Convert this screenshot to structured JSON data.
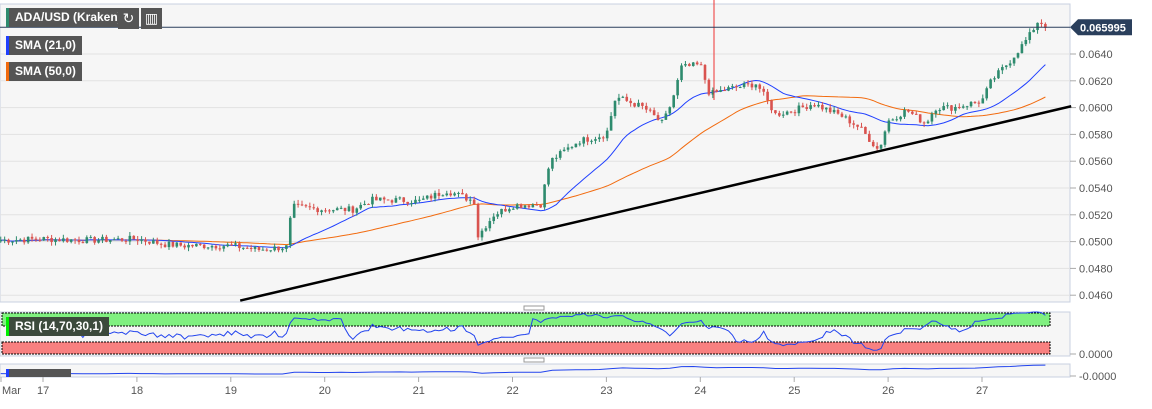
{
  "header": {
    "symbol": "ADA/USD (Kraken)",
    "refresh_icon": "refresh-icon",
    "bars_icon": "chart-bars-icon"
  },
  "indicators": {
    "sma21": "SMA (21,0)",
    "sma50": "SMA (50,0)",
    "rsi": "RSI (14,70,30,1)",
    "lower": ""
  },
  "colors": {
    "sma21": "#1f3fff",
    "sma50": "#f26b0f",
    "up": "#2e8b6e",
    "down": "#d9534f",
    "rsi_over": "#80f080",
    "rsi_under": "#f88080"
  },
  "chart_data": {
    "type": "candlestick",
    "title": "ADA/USD (Kraken)",
    "last_price": "0.065995",
    "y_ticks": [
      "0.0640",
      "0.0620",
      "0.0600",
      "0.0580",
      "0.0560",
      "0.0540",
      "0.0520",
      "0.0500",
      "0.0480",
      "0.0460"
    ],
    "ylim": [
      0.0456,
      0.066
    ],
    "x_ticks": [
      "Mar",
      "17",
      "18",
      "19",
      "20",
      "21",
      "22",
      "23",
      "24",
      "25",
      "26",
      "27"
    ],
    "rsi_axis": "0.0000",
    "lower_axis": "-0.0000",
    "price_path": [
      [
        16.55,
        0.0501
      ],
      [
        17,
        0.0502
      ],
      [
        17.5,
        0.0501
      ],
      [
        18,
        0.0502
      ],
      [
        18.3,
        0.0498
      ],
      [
        18.5,
        0.0497
      ],
      [
        19,
        0.0497
      ],
      [
        19.3,
        0.0494
      ],
      [
        19.6,
        0.0496
      ],
      [
        19.65,
        0.0526
      ],
      [
        20,
        0.0524
      ],
      [
        20.3,
        0.0524
      ],
      [
        20.5,
        0.0531
      ],
      [
        20.8,
        0.0531
      ],
      [
        21,
        0.053
      ],
      [
        21.3,
        0.0538
      ],
      [
        21.6,
        0.053
      ],
      [
        21.62,
        0.0503
      ],
      [
        21.8,
        0.052
      ],
      [
        22,
        0.0527
      ],
      [
        22.3,
        0.0528
      ],
      [
        22.4,
        0.056
      ],
      [
        22.7,
        0.0575
      ],
      [
        23,
        0.058
      ],
      [
        23.1,
        0.0608
      ],
      [
        23.4,
        0.06
      ],
      [
        23.6,
        0.0588
      ],
      [
        23.7,
        0.0605
      ],
      [
        23.8,
        0.063
      ],
      [
        24,
        0.0632
      ],
      [
        24.1,
        0.061
      ],
      [
        24.3,
        0.0614
      ],
      [
        24.6,
        0.0618
      ],
      [
        24.8,
        0.0595
      ],
      [
        25,
        0.0598
      ],
      [
        25.2,
        0.0603
      ],
      [
        25.5,
        0.0594
      ],
      [
        25.7,
        0.0585
      ],
      [
        25.9,
        0.0568
      ],
      [
        26,
        0.059
      ],
      [
        26.2,
        0.0598
      ],
      [
        26.4,
        0.0588
      ],
      [
        26.5,
        0.06
      ],
      [
        26.7,
        0.06
      ],
      [
        27,
        0.0605
      ],
      [
        27.1,
        0.062
      ],
      [
        27.3,
        0.0635
      ],
      [
        27.5,
        0.0653
      ],
      [
        27.6,
        0.0665
      ],
      [
        27.7,
        0.066
      ]
    ],
    "trendline": [
      [
        19.1,
        0.0456
      ],
      [
        27.95,
        0.0601
      ]
    ]
  }
}
